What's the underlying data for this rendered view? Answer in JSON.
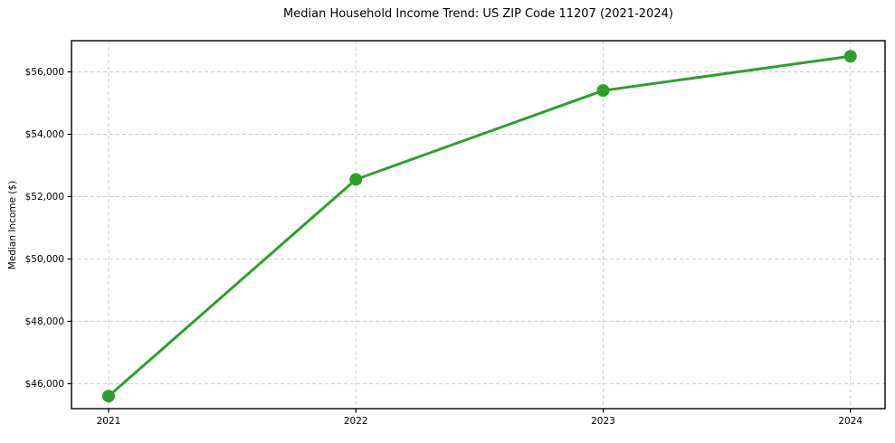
{
  "chart_data": {
    "type": "line",
    "title": "Median Household Income Trend: US ZIP Code 11207 (2021-2024)",
    "xlabel": "",
    "ylabel": "Median Income ($)",
    "x": [
      2021,
      2022,
      2023,
      2024
    ],
    "series": [
      {
        "name": "Median Household Income",
        "values": [
          45600,
          52550,
          55400,
          56500
        ]
      }
    ],
    "x_ticks": [
      {
        "value": 2021,
        "label": "2021"
      },
      {
        "value": 2022,
        "label": "2022"
      },
      {
        "value": 2023,
        "label": "2023"
      },
      {
        "value": 2024,
        "label": "2024"
      }
    ],
    "y_ticks": [
      {
        "value": 46000,
        "label": "$46,000"
      },
      {
        "value": 48000,
        "label": "$48,000"
      },
      {
        "value": 50000,
        "label": "$50,000"
      },
      {
        "value": 52000,
        "label": "$52,000"
      },
      {
        "value": 54000,
        "label": "$54,000"
      },
      {
        "value": 56000,
        "label": "$56,000"
      }
    ],
    "xlim": [
      2020.85,
      2024.14
    ],
    "ylim": [
      45200,
      57000
    ],
    "grid": true,
    "grid_style": "dashed",
    "legend": "none",
    "colors": {
      "line": "#2ca02c",
      "marker": "#2ca02c",
      "grid": "#cccccc",
      "axis": "#000000",
      "text": "#000000",
      "background": "#ffffff"
    }
  }
}
